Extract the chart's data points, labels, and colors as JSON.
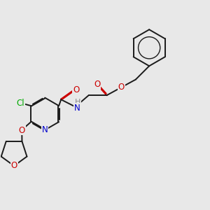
{
  "background_color": "#e8e8e8",
  "bond_color": "#1a1a1a",
  "atom_colors": {
    "O": "#cc0000",
    "N": "#0000cc",
    "Cl": "#00aa00",
    "H": "#888888",
    "C": "#1a1a1a"
  },
  "figsize": [
    3.0,
    3.0
  ],
  "dpi": 100,
  "lw": 1.4
}
